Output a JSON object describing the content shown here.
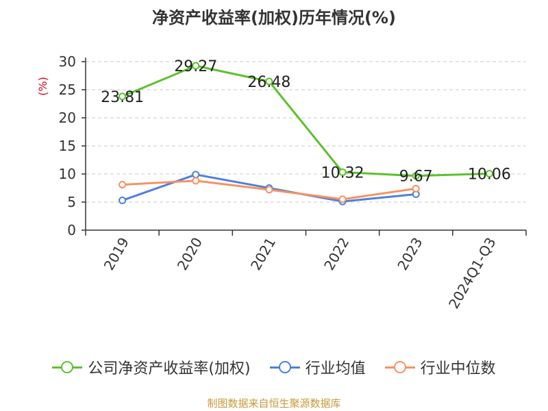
{
  "title": "净资产收益率(加权)历年情况(%)",
  "source": "制图数据来自恒生聚源数据库",
  "chart_data": {
    "type": "line",
    "title": "净资产收益率(加权)历年情况(%)",
    "ylabel": "(%)",
    "xlabel": "",
    "categories": [
      "2019",
      "2020",
      "2021",
      "2022",
      "2023",
      "2024Q1-Q3"
    ],
    "yticks": [
      "0",
      "5",
      "10",
      "15",
      "20",
      "25",
      "30"
    ],
    "ylim": [
      0,
      30
    ],
    "grid": true,
    "legend_position": "bottom",
    "series": [
      {
        "name": "公司净资产收益率(加权)",
        "color": "#5cc12b",
        "values": [
          23.81,
          29.27,
          26.48,
          10.32,
          9.67,
          10.06
        ],
        "labels": [
          "23.81",
          "29.27",
          "26.48",
          "10.32",
          "9.67",
          "10.06"
        ]
      },
      {
        "name": "行业均值",
        "color": "#4f7fdc",
        "values": [
          5.3,
          9.9,
          7.5,
          5.1,
          6.4,
          null
        ]
      },
      {
        "name": "行业中位数",
        "color": "#f59262",
        "values": [
          8.1,
          8.8,
          7.2,
          5.5,
          7.4,
          null
        ]
      }
    ]
  }
}
